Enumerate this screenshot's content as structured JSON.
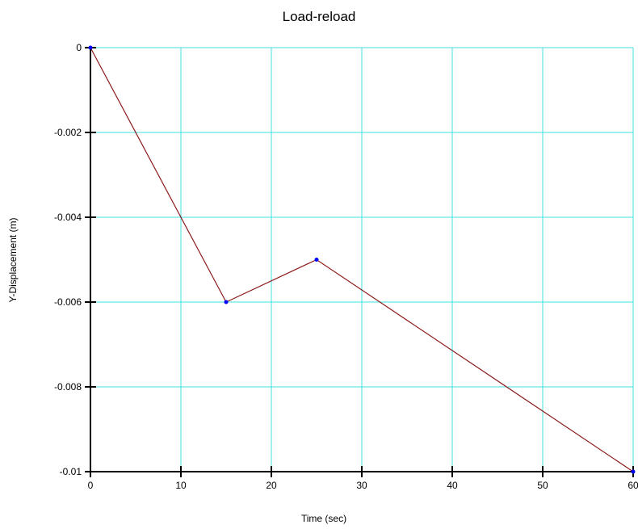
{
  "chart_data": {
    "type": "line",
    "title": "Load-reload",
    "xlabel": "Time (sec)",
    "ylabel": "Y-Displacement (m)",
    "xlim": [
      0,
      60
    ],
    "ylim": [
      -0.01,
      0
    ],
    "xticks": [
      0,
      10,
      20,
      30,
      40,
      50,
      60
    ],
    "xtick_labels": [
      "0",
      "10",
      "20",
      "30",
      "40",
      "50",
      "60"
    ],
    "yticks": [
      0,
      -0.002,
      -0.004,
      -0.006,
      -0.008,
      -0.01
    ],
    "ytick_labels": [
      "0",
      "-0.002",
      "-0.004",
      "-0.006",
      "-0.008",
      "-0.01"
    ],
    "grid": true,
    "legend": "none",
    "colors": {
      "line": "#8b1a1a",
      "markers": "#0000ff",
      "grid": "#40e0e0",
      "axes": "#000000"
    },
    "series": [
      {
        "x": [
          0,
          15,
          25,
          60
        ],
        "y": [
          0,
          -0.006,
          -0.005,
          -0.01
        ]
      }
    ]
  }
}
